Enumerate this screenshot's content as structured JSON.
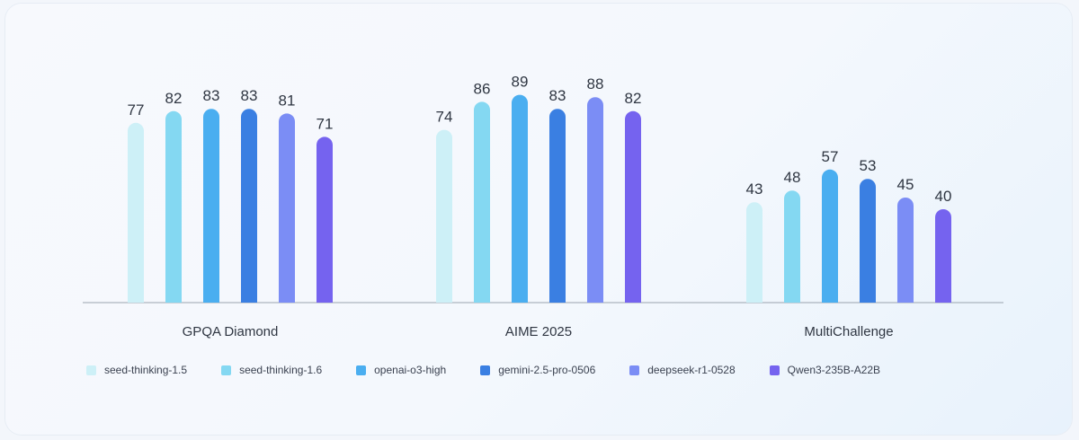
{
  "chart_data": {
    "type": "bar",
    "categories": [
      "GPQA Diamond",
      "AIME 2025",
      "MultiChallenge"
    ],
    "series": [
      {
        "name": "seed-thinking-1.5",
        "color": "#cdf0f7",
        "values": [
          77,
          74,
          43
        ]
      },
      {
        "name": "seed-thinking-1.6",
        "color": "#84d8f2",
        "values": [
          82,
          86,
          48
        ]
      },
      {
        "name": "openai-o3-high",
        "color": "#4aaef0",
        "values": [
          83,
          89,
          57
        ]
      },
      {
        "name": "gemini-2.5-pro-0506",
        "color": "#3a7fe2",
        "values": [
          83,
          83,
          53
        ]
      },
      {
        "name": "deepseek-r1-0528",
        "color": "#7b8df5",
        "values": [
          81,
          88,
          45
        ]
      },
      {
        "name": "Qwen3-235B-A22B",
        "color": "#7563ef",
        "values": [
          71,
          82,
          40
        ]
      }
    ],
    "legend_position": "bottom"
  }
}
